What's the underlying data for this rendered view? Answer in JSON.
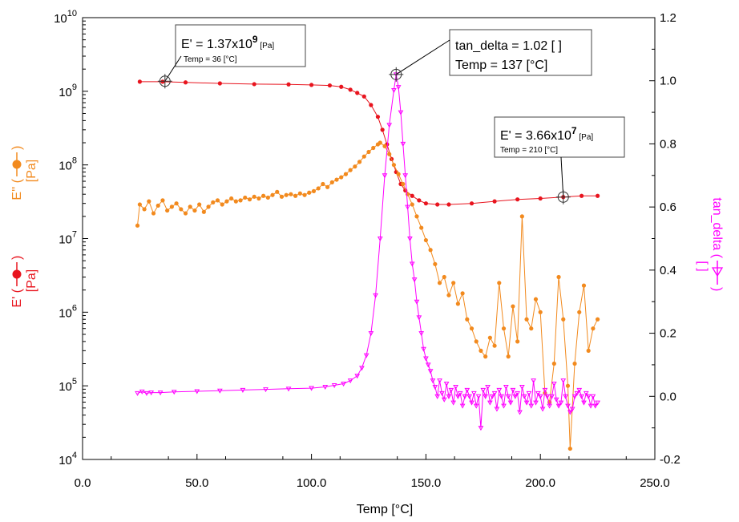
{
  "chart_data": {
    "type": "line",
    "xlabel": "Temp [°C]",
    "xlim": [
      0,
      250
    ],
    "x_ticks": [
      "0.0",
      "50.0",
      "100.0",
      "150.0",
      "200.0",
      "250.0"
    ],
    "y_left": {
      "scale": "log",
      "ylim": [
        10000,
        10000000000
      ],
      "ticks": [
        {
          "base": "10",
          "exp": "4"
        },
        {
          "base": "10",
          "exp": "5"
        },
        {
          "base": "10",
          "exp": "6"
        },
        {
          "base": "10",
          "exp": "7"
        },
        {
          "base": "10",
          "exp": "8"
        },
        {
          "base": "10",
          "exp": "9"
        },
        {
          "base": "10",
          "exp": "10"
        }
      ]
    },
    "y_right": {
      "scale": "linear",
      "ylim": [
        -0.2,
        1.2
      ],
      "ticks": [
        "-0.2",
        "0.0",
        "0.2",
        "0.4",
        "0.6",
        "0.8",
        "1.0",
        "1.2"
      ]
    },
    "y_labels_left": [
      {
        "text1": "E' (",
        "text2": ")",
        "unit": "[Pa]",
        "color": "#e8141e",
        "marker": "circle"
      },
      {
        "text1": "E'' (",
        "text2": ")",
        "unit": "[Pa]",
        "color": "#f28a1e",
        "marker": "circle"
      }
    ],
    "y_label_right": {
      "text1": "tan_delta (",
      "text2": ")",
      "unit": "[ ]",
      "color": "#ff00ff",
      "marker": "triangle"
    },
    "series": [
      {
        "name": "E'",
        "axis": "left",
        "color": "#e8141e",
        "marker": "circle",
        "points": [
          [
            25,
            1350000000.0
          ],
          [
            35,
            1350000000.0
          ],
          [
            45,
            1320000000.0
          ],
          [
            60,
            1280000000.0
          ],
          [
            75,
            1250000000.0
          ],
          [
            90,
            1240000000.0
          ],
          [
            100,
            1220000000.0
          ],
          [
            108,
            1200000000.0
          ],
          [
            113,
            1150000000.0
          ],
          [
            117,
            1050000000.0
          ],
          [
            120,
            950000000.0
          ],
          [
            123,
            850000000.0
          ],
          [
            126,
            650000000.0
          ],
          [
            129,
            450000000.0
          ],
          [
            131,
            300000000.0
          ],
          [
            133,
            190000000.0
          ],
          [
            135,
            120000000.0
          ],
          [
            137,
            80000000.0
          ],
          [
            139,
            55000000.0
          ],
          [
            141,
            45000000.0
          ],
          [
            144,
            38000000.0
          ],
          [
            147,
            33000000.0
          ],
          [
            150,
            30000000.0
          ],
          [
            155,
            29000000.0
          ],
          [
            160,
            29000000.0
          ],
          [
            170,
            30000000.0
          ],
          [
            180,
            32000000.0
          ],
          [
            190,
            34000000.0
          ],
          [
            200,
            35000000.0
          ],
          [
            210,
            36600000.0
          ],
          [
            218,
            38000000.0
          ],
          [
            225,
            38000000.0
          ]
        ]
      },
      {
        "name": "E''",
        "axis": "left",
        "color": "#f28a1e",
        "marker": "circle",
        "points": [
          [
            24,
            15000000.0
          ],
          [
            25,
            29000000.0
          ],
          [
            27,
            25000000.0
          ],
          [
            29,
            32000000.0
          ],
          [
            31,
            22000000.0
          ],
          [
            33,
            28000000.0
          ],
          [
            35,
            33000000.0
          ],
          [
            37,
            24000000.0
          ],
          [
            39,
            27000000.0
          ],
          [
            41,
            30000000.0
          ],
          [
            43,
            25000000.0
          ],
          [
            45,
            22000000.0
          ],
          [
            47,
            27000000.0
          ],
          [
            49,
            24000000.0
          ],
          [
            51,
            29000000.0
          ],
          [
            53,
            23000000.0
          ],
          [
            55,
            27000000.0
          ],
          [
            57,
            31000000.0
          ],
          [
            59,
            33000000.0
          ],
          [
            61,
            29000000.0
          ],
          [
            63,
            32000000.0
          ],
          [
            65,
            35000000.0
          ],
          [
            67,
            32000000.0
          ],
          [
            69,
            33000000.0
          ],
          [
            71,
            36000000.0
          ],
          [
            73,
            34000000.0
          ],
          [
            75,
            37000000.0
          ],
          [
            77,
            35000000.0
          ],
          [
            79,
            38000000.0
          ],
          [
            81,
            36000000.0
          ],
          [
            83,
            39000000.0
          ],
          [
            85,
            43000000.0
          ],
          [
            87,
            37000000.0
          ],
          [
            89,
            39000000.0
          ],
          [
            91,
            40000000.0
          ],
          [
            93,
            38000000.0
          ],
          [
            95,
            41000000.0
          ],
          [
            97,
            39000000.0
          ],
          [
            99,
            42000000.0
          ],
          [
            101,
            44000000.0
          ],
          [
            103,
            48000000.0
          ],
          [
            105,
            55000000.0
          ],
          [
            107,
            50000000.0
          ],
          [
            109,
            58000000.0
          ],
          [
            111,
            63000000.0
          ],
          [
            113,
            68000000.0
          ],
          [
            115,
            75000000.0
          ],
          [
            117,
            85000000.0
          ],
          [
            119,
            95000000.0
          ],
          [
            121,
            110000000.0
          ],
          [
            123,
            130000000.0
          ],
          [
            125,
            150000000.0
          ],
          [
            127,
            170000000.0
          ],
          [
            129,
            190000000.0
          ],
          [
            130,
            200000000.0
          ],
          [
            132,
            180000000.0
          ],
          [
            134,
            140000000.0
          ],
          [
            136,
            100000000.0
          ],
          [
            138,
            75000000.0
          ],
          [
            140,
            55000000.0
          ],
          [
            142,
            40000000.0
          ],
          [
            144,
            29000000.0
          ],
          [
            146,
            20000000.0
          ],
          [
            148,
            14000000.0
          ],
          [
            150,
            9500000.0
          ],
          [
            152,
            7000000.0
          ],
          [
            154,
            4500000.0
          ],
          [
            156,
            2500000.0
          ],
          [
            158,
            3000000.0
          ],
          [
            160,
            1700000.0
          ],
          [
            162,
            2500000.0
          ],
          [
            164,
            1300000.0
          ],
          [
            166,
            1800000.0
          ],
          [
            168,
            800000.0
          ],
          [
            170,
            600000.0
          ],
          [
            172,
            400000.0
          ],
          [
            174,
            300000.0
          ],
          [
            176,
            250000.0
          ],
          [
            178,
            450000.0
          ],
          [
            180,
            350000.0
          ],
          [
            182,
            2500000.0
          ],
          [
            184,
            600000.0
          ],
          [
            186,
            250000.0
          ],
          [
            188,
            1200000.0
          ],
          [
            190,
            400000.0
          ],
          [
            192,
            20000000.0
          ],
          [
            194,
            800000.0
          ],
          [
            196,
            600000.0
          ],
          [
            198,
            1500000.0
          ],
          [
            200,
            1000000.0
          ],
          [
            202,
            80000.0
          ],
          [
            204,
            60000.0
          ],
          [
            206,
            200000.0
          ],
          [
            208,
            3000000.0
          ],
          [
            210,
            800000.0
          ],
          [
            212,
            100000.0
          ],
          [
            213,
            14000.0
          ],
          [
            215,
            200000.0
          ],
          [
            217,
            1000000.0
          ],
          [
            219,
            2300000.0
          ],
          [
            221,
            300000.0
          ],
          [
            223,
            600000.0
          ],
          [
            225,
            800000.0
          ]
        ]
      },
      {
        "name": "tan_delta",
        "axis": "right",
        "color": "#ff00ff",
        "marker": "triangle",
        "points": [
          [
            24,
            0.01
          ],
          [
            26,
            0.015
          ],
          [
            28,
            0.01
          ],
          [
            30,
            0.012
          ],
          [
            34,
            0.012
          ],
          [
            40,
            0.014
          ],
          [
            50,
            0.016
          ],
          [
            60,
            0.018
          ],
          [
            70,
            0.02
          ],
          [
            80,
            0.022
          ],
          [
            90,
            0.024
          ],
          [
            100,
            0.026
          ],
          [
            106,
            0.03
          ],
          [
            110,
            0.035
          ],
          [
            114,
            0.04
          ],
          [
            117,
            0.05
          ],
          [
            120,
            0.065
          ],
          [
            122,
            0.09
          ],
          [
            124,
            0.13
          ],
          [
            126,
            0.2
          ],
          [
            128,
            0.32
          ],
          [
            130,
            0.5
          ],
          [
            132,
            0.7
          ],
          [
            134,
            0.86
          ],
          [
            136,
            0.97
          ],
          [
            137,
            1.02
          ],
          [
            138,
            0.98
          ],
          [
            139,
            0.9
          ],
          [
            140,
            0.8
          ],
          [
            141,
            0.7
          ],
          [
            142,
            0.6
          ],
          [
            143,
            0.5
          ],
          [
            144,
            0.42
          ],
          [
            145,
            0.37
          ],
          [
            146,
            0.3
          ],
          [
            147,
            0.25
          ],
          [
            148,
            0.2
          ],
          [
            149,
            0.15
          ],
          [
            150,
            0.12
          ],
          [
            151,
            0.1
          ],
          [
            152,
            0.08
          ],
          [
            153,
            0.05
          ],
          [
            154,
            0.03
          ],
          [
            155,
            0.0
          ],
          [
            156,
            0.05
          ],
          [
            157,
            0.01
          ],
          [
            158,
            -0.01
          ],
          [
            159,
            0.04
          ],
          [
            160,
            0.0
          ],
          [
            161,
            0.02
          ],
          [
            162,
            -0.02
          ],
          [
            163,
            0.03
          ],
          [
            164,
            0.0
          ],
          [
            165,
            0.01
          ],
          [
            166,
            -0.03
          ],
          [
            167,
            0.0
          ],
          [
            168,
            0.02
          ],
          [
            169,
            0.0
          ],
          [
            170,
            -0.02
          ],
          [
            171,
            0.01
          ],
          [
            172,
            -0.03
          ],
          [
            173,
            0.0
          ],
          [
            174,
            -0.1
          ],
          [
            175,
            0.02
          ],
          [
            176,
            0.0
          ],
          [
            177,
            0.03
          ],
          [
            178,
            -0.02
          ],
          [
            179,
            0.0
          ],
          [
            180,
            0.01
          ],
          [
            181,
            -0.04
          ],
          [
            182,
            0.02
          ],
          [
            183,
            0.0
          ],
          [
            184,
            -0.03
          ],
          [
            185,
            0.03
          ],
          [
            186,
            0.0
          ],
          [
            187,
            -0.02
          ],
          [
            188,
            0.02
          ],
          [
            189,
            0.0
          ],
          [
            190,
            0.01
          ],
          [
            191,
            -0.05
          ],
          [
            192,
            0.03
          ],
          [
            193,
            0.0
          ],
          [
            194,
            -0.02
          ],
          [
            195,
            0.01
          ],
          [
            196,
            -0.03
          ],
          [
            197,
            0.05
          ],
          [
            198,
            -0.02
          ],
          [
            199,
            0.01
          ],
          [
            200,
            0.0
          ],
          [
            201,
            -0.04
          ],
          [
            202,
            0.02
          ],
          [
            203,
            0.0
          ],
          [
            204,
            -0.03
          ],
          [
            205,
            0.0
          ],
          [
            206,
            0.04
          ],
          [
            207,
            -0.01
          ],
          [
            208,
            -0.03
          ],
          [
            209,
            -0.02
          ],
          [
            210,
            0.05
          ],
          [
            211,
            0.0
          ],
          [
            212,
            -0.03
          ],
          [
            213,
            -0.05
          ],
          [
            214,
            -0.04
          ],
          [
            215,
            0.0
          ],
          [
            216,
            0.01
          ],
          [
            217,
            0.02
          ],
          [
            218,
            0.0
          ],
          [
            219,
            -0.02
          ],
          [
            220,
            0.01
          ],
          [
            221,
            0.0
          ],
          [
            222,
            -0.03
          ],
          [
            223,
            0.0
          ],
          [
            224,
            -0.03
          ],
          [
            225,
            -0.02
          ]
        ]
      }
    ],
    "annotations": [
      {
        "series": "E'",
        "x": 36,
        "y": 1370000000.0,
        "big_prefix": "E' = 1.37x10",
        "big_exp": "9",
        "unit": "[Pa]",
        "small": "Temp = 36 [°C]"
      },
      {
        "series": "tan_delta",
        "x": 137,
        "y": 1.02,
        "line1": "tan_delta = 1.02 [ ]",
        "line2": "Temp = 137 [°C]"
      },
      {
        "series": "E'",
        "x": 210,
        "y": 36600000.0,
        "big_prefix": "E' = 3.66x10",
        "big_exp": "7",
        "unit": "[Pa]",
        "small": "Temp = 210 [°C]"
      }
    ]
  }
}
